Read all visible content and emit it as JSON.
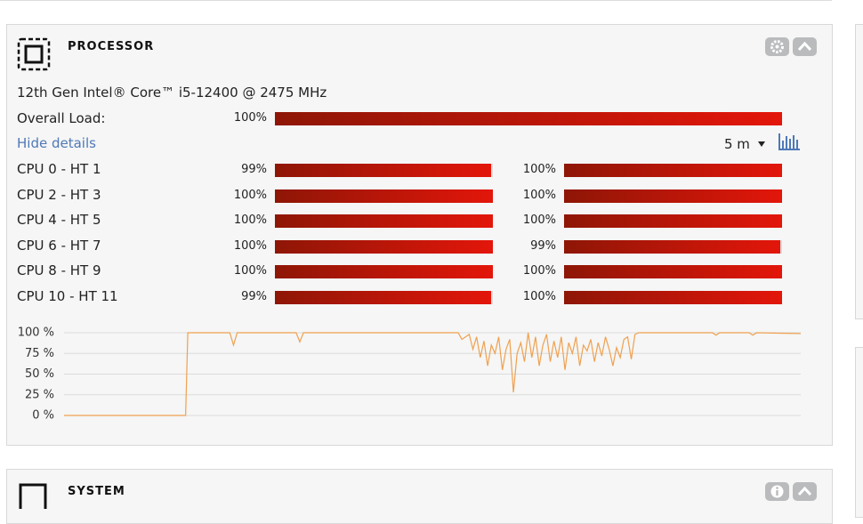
{
  "panel": {
    "title": "PROCESSOR",
    "cpu_name": "12th Gen Intel® Core™ i5-12400 @ 2475 MHz",
    "overall_label": "Overall Load:",
    "overall_value": 100,
    "overall_value_label": "100%",
    "hide_details": "Hide details",
    "range": "5 m"
  },
  "cores": [
    {
      "label": "CPU 0 - HT 1",
      "values": [
        99,
        100
      ],
      "value_labels": [
        "99%",
        "100%"
      ]
    },
    {
      "label": "CPU 2 - HT 3",
      "values": [
        100,
        100
      ],
      "value_labels": [
        "100%",
        "100%"
      ]
    },
    {
      "label": "CPU 4 - HT 5",
      "values": [
        100,
        100
      ],
      "value_labels": [
        "100%",
        "100%"
      ]
    },
    {
      "label": "CPU 6 - HT 7",
      "values": [
        100,
        99
      ],
      "value_labels": [
        "100%",
        "99%"
      ]
    },
    {
      "label": "CPU 8 - HT 9",
      "values": [
        100,
        100
      ],
      "value_labels": [
        "100%",
        "100%"
      ]
    },
    {
      "label": "CPU 10 - HT 11",
      "values": [
        99,
        100
      ],
      "value_labels": [
        "99%",
        "100%"
      ]
    }
  ],
  "chart_data": {
    "type": "line",
    "color": "#f0a050",
    "grid": true,
    "xlim": [
      0,
      100
    ],
    "ylim": [
      0,
      100
    ],
    "yticks": [
      {
        "value": 0,
        "label": "0 %"
      },
      {
        "value": 25,
        "label": "25 %"
      },
      {
        "value": 50,
        "label": "50 %"
      },
      {
        "value": 75,
        "label": "75 %"
      },
      {
        "value": 100,
        "label": "100 %"
      }
    ],
    "x": [
      0,
      16.5,
      16.8,
      22.5,
      23,
      23.5,
      31.5,
      32,
      32.5,
      53.5,
      54,
      55,
      55.5,
      56,
      56.5,
      57,
      57.5,
      58,
      58.5,
      59,
      59.5,
      60,
      60.5,
      61,
      61.5,
      62,
      62.5,
      63,
      63.5,
      64,
      64.5,
      65,
      65.5,
      66,
      66.5,
      67,
      67.5,
      68,
      68.5,
      69,
      69.5,
      70,
      70.5,
      71,
      71.5,
      72,
      72.5,
      73,
      73.5,
      74,
      74.5,
      75,
      75.5,
      76,
      76.5,
      77,
      77.5,
      78,
      88,
      88.5,
      89,
      93,
      93.5,
      94,
      100
    ],
    "values": [
      0,
      0,
      100,
      100,
      85,
      100,
      100,
      89,
      100,
      100,
      92,
      98,
      80,
      95,
      70,
      90,
      60,
      85,
      75,
      95,
      55,
      80,
      92,
      28,
      75,
      88,
      65,
      100,
      70,
      95,
      60,
      85,
      98,
      65,
      90,
      70,
      95,
      55,
      88,
      75,
      95,
      60,
      85,
      78,
      92,
      65,
      88,
      72,
      95,
      80,
      60,
      82,
      70,
      92,
      95,
      68,
      98,
      100,
      100,
      97,
      100,
      100,
      97,
      100,
      99
    ]
  },
  "system_panel": {
    "title": "SYSTEM"
  }
}
